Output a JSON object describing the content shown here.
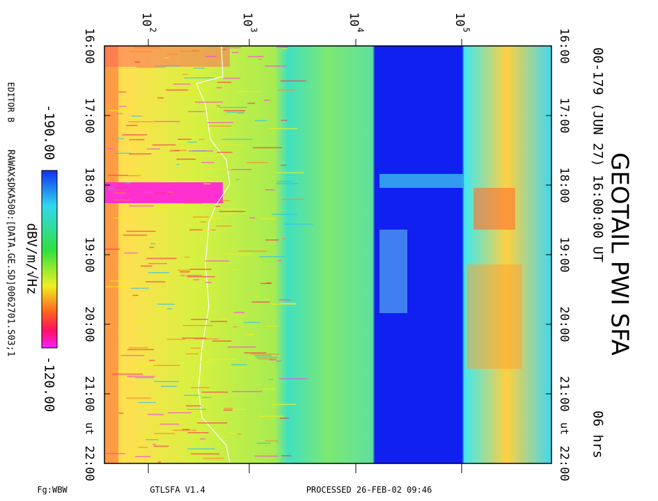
{
  "plot": {
    "title": "GEOTAIL PWI SFA",
    "subtitle": "00-179 (JUN 27) 16:00:00 UT",
    "duration": "06 hrs",
    "editor": "EDITOR B",
    "file": "RAWAX$DKA500:[DATA.GE.SD]0062701.S03;1",
    "colorbar_min": "-190.00",
    "colorbar_max": "-120.00",
    "colorbar_unit": "dBV/m/√Hz",
    "footer_left": "Fg:WBW",
    "footer_mid": "GTLSFA   V1.4",
    "footer_right": "PROCESSED 26-FEB-02   09:46",
    "time_unit": "ut",
    "times": [
      "16:00",
      "17:00",
      "18:00",
      "19:00",
      "20:00",
      "21:00",
      "22:00"
    ],
    "freq_labels": [
      {
        "base": "10",
        "exp": "2"
      },
      {
        "base": "10",
        "exp": "3"
      },
      {
        "base": "10",
        "exp": "4"
      },
      {
        "base": "10",
        "exp": "5"
      }
    ]
  }
}
